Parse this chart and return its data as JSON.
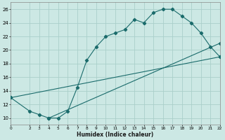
{
  "xlabel": "Humidex (Indice chaleur)",
  "ylabel": "",
  "xlim": [
    0,
    22
  ],
  "ylim": [
    9,
    27
  ],
  "xticks": [
    0,
    2,
    3,
    4,
    5,
    6,
    7,
    8,
    9,
    10,
    11,
    12,
    13,
    14,
    15,
    16,
    17,
    18,
    19,
    20,
    21,
    22
  ],
  "yticks": [
    10,
    12,
    14,
    16,
    18,
    20,
    22,
    24,
    26
  ],
  "background_color": "#cce8e4",
  "grid_color": "#aacfca",
  "line_color": "#1a6b6b",
  "line1_x": [
    0,
    2,
    3,
    4,
    5,
    6,
    7,
    8,
    9,
    10,
    11,
    12,
    13,
    14,
    15,
    16,
    17,
    18,
    19,
    20,
    21,
    22
  ],
  "line1_y": [
    13,
    11,
    10.5,
    10,
    10,
    11,
    14.5,
    18.5,
    20.5,
    22,
    22.5,
    23,
    24.5,
    24,
    25.5,
    26,
    26,
    25,
    24,
    22.5,
    20.5,
    19
  ],
  "line2_x": [
    0,
    22
  ],
  "line2_y": [
    13,
    19
  ],
  "line3_x": [
    4,
    22
  ],
  "line3_y": [
    10,
    21
  ]
}
